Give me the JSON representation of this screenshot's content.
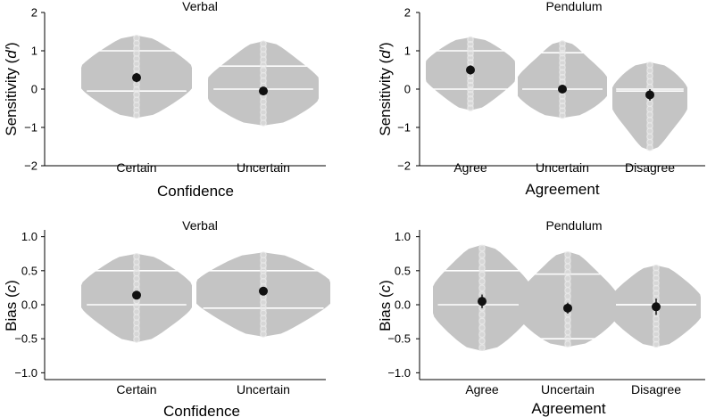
{
  "chart_data": [
    {
      "type": "violin",
      "title": "Verbal",
      "xlabel": "Confidence",
      "ylabel": "Sensitivity (d′)",
      "ylabel_main": "Sensitivity (",
      "ylabel_italic": "d′",
      "ylabel_tail": ")",
      "ylim": [
        -2,
        2
      ],
      "yticks": [
        "2",
        "1",
        "0",
        "−1",
        "−2"
      ],
      "ytick_values": [
        2,
        1,
        0,
        -1,
        -2
      ],
      "categories": [
        "Certain",
        "Uncertain"
      ],
      "means": [
        0.3,
        -0.05
      ],
      "ci": [
        0.12,
        0.1
      ],
      "ranges": [
        [
          -0.75,
          1.4
        ],
        [
          -0.95,
          1.25
        ]
      ],
      "quartiles": [
        [
          -0.05,
          1.0
        ],
        [
          0.0,
          0.6
        ]
      ]
    },
    {
      "type": "violin",
      "title": "Pendulum",
      "xlabel": "Agreement",
      "ylabel": "Sensitivity (d′)",
      "ylabel_main": "Sensitivity (",
      "ylabel_italic": "d′",
      "ylabel_tail": ")",
      "ylim": [
        -2,
        2
      ],
      "yticks": [
        "2",
        "1",
        "0",
        "−1",
        "−2"
      ],
      "ytick_values": [
        2,
        1,
        0,
        -1,
        -2
      ],
      "categories": [
        "Agree",
        "Uncertain",
        "Disagree"
      ],
      "means": [
        0.5,
        0.0,
        -0.15
      ],
      "ci": [
        0.12,
        0.1,
        0.15
      ],
      "ranges": [
        [
          -0.55,
          1.35
        ],
        [
          -0.75,
          1.25
        ],
        [
          -1.6,
          0.7
        ]
      ],
      "quartiles": [
        [
          0.0,
          1.0
        ],
        [
          0.0,
          0.95
        ],
        [
          -0.05,
          0.0
        ]
      ]
    },
    {
      "type": "violin",
      "title": "Verbal",
      "xlabel": "Confidence",
      "ylabel": "Bias (c)",
      "ylabel_main": "Bias (",
      "ylabel_italic": "c",
      "ylabel_tail": ")",
      "ylim": [
        -1.1,
        1.1
      ],
      "yticks": [
        "1.0",
        "0.5",
        "0.0",
        "−0.5",
        "−1.0"
      ],
      "ytick_values": [
        1.0,
        0.5,
        0.0,
        -0.5,
        -1.0
      ],
      "categories": [
        "Certain",
        "Uncertain"
      ],
      "means": [
        0.14,
        0.2
      ],
      "ci": [
        0.05,
        0.05
      ],
      "ranges": [
        [
          -0.55,
          0.75
        ],
        [
          -0.47,
          0.77
        ]
      ],
      "quartiles": [
        [
          0.0,
          0.5
        ],
        [
          -0.05,
          0.5
        ]
      ]
    },
    {
      "type": "violin",
      "title": "Pendulum",
      "xlabel": "Agreement",
      "ylabel": "Bias (c)",
      "ylabel_main": "Bias (",
      "ylabel_italic": "c",
      "ylabel_tail": ")",
      "ylim": [
        -1.1,
        1.1
      ],
      "yticks": [
        "1.0",
        "0.5",
        "0.0",
        "−0.5",
        "−1.0"
      ],
      "ytick_values": [
        1.0,
        0.5,
        0.0,
        -0.5,
        -1.0
      ],
      "categories": [
        "Agree",
        "Uncertain",
        "Disagree"
      ],
      "means": [
        0.05,
        -0.05,
        -0.03
      ],
      "ci": [
        0.1,
        0.08,
        0.12
      ],
      "ranges": [
        [
          -0.68,
          0.88
        ],
        [
          -0.62,
          0.78
        ],
        [
          -0.62,
          0.58
        ]
      ],
      "quartiles": [
        [
          0.0,
          0.5
        ],
        [
          -0.5,
          0.45
        ],
        [
          0.0,
          0.0
        ]
      ]
    }
  ],
  "colors": {
    "violin": "#c4c4c4",
    "line": "#ffffff",
    "dot": "#111111",
    "point": "#e8e8e8"
  }
}
